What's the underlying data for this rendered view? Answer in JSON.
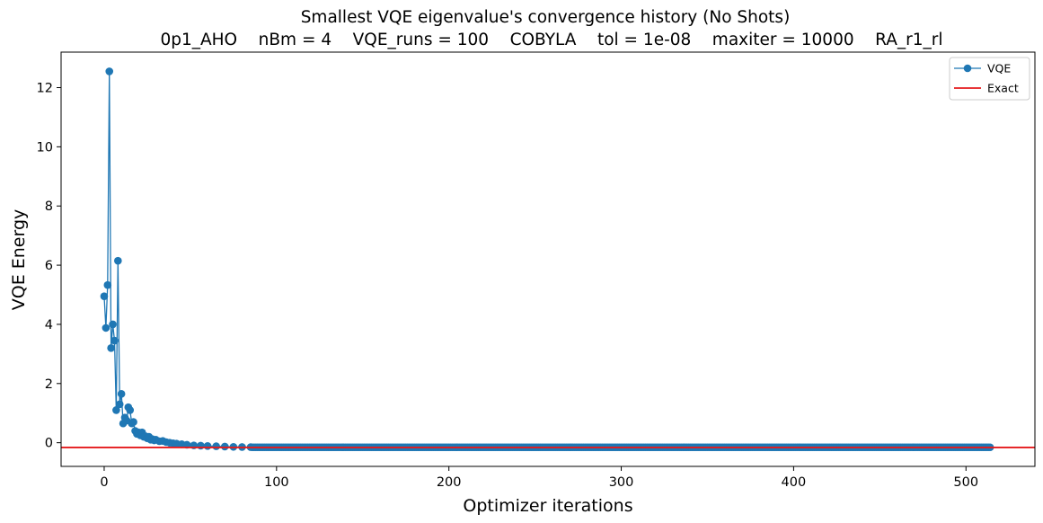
{
  "chart_data": {
    "type": "line",
    "title": "Smallest VQE eigenvalue's convergence history (No Shots)",
    "subtitle": "0p1_AHO    nBm = 4    VQE_runs = 100    COBYLA    tol = 1e-08    maxiter = 10000    RA_r1_rl",
    "xlabel": "Optimizer iterations",
    "ylabel": "VQE Energy",
    "xlim": [
      -25,
      540
    ],
    "ylim": [
      -0.8,
      13.2
    ],
    "x_ticks": [
      0,
      100,
      200,
      300,
      400,
      500
    ],
    "y_ticks": [
      0,
      2,
      4,
      6,
      8,
      10,
      12
    ],
    "grid": false,
    "legend_position": "top-right",
    "colors": {
      "vqe": "#1f77b4",
      "exact": "#e41a1c"
    },
    "series": [
      {
        "name": "VQE",
        "style": "line-marker",
        "head": [
          [
            0,
            4.95
          ],
          [
            1,
            3.88
          ],
          [
            2,
            5.33
          ],
          [
            3,
            12.55
          ],
          [
            4,
            3.2
          ],
          [
            5,
            4.0
          ],
          [
            6,
            3.45
          ],
          [
            7,
            1.1
          ],
          [
            8,
            6.15
          ],
          [
            9,
            1.3
          ],
          [
            10,
            1.65
          ],
          [
            11,
            0.65
          ],
          [
            12,
            0.85
          ],
          [
            13,
            0.75
          ],
          [
            14,
            1.2
          ],
          [
            15,
            1.1
          ],
          [
            16,
            0.65
          ],
          [
            17,
            0.7
          ],
          [
            18,
            0.4
          ],
          [
            19,
            0.3
          ],
          [
            20,
            0.35
          ],
          [
            21,
            0.25
          ],
          [
            22,
            0.35
          ],
          [
            23,
            0.2
          ],
          [
            24,
            0.22
          ],
          [
            25,
            0.15
          ],
          [
            26,
            0.2
          ],
          [
            27,
            0.1
          ],
          [
            28,
            0.12
          ],
          [
            29,
            0.08
          ],
          [
            30,
            0.1
          ],
          [
            32,
            0.05
          ],
          [
            34,
            0.06
          ],
          [
            36,
            0.02
          ],
          [
            38,
            0.0
          ],
          [
            40,
            -0.02
          ],
          [
            42,
            -0.03
          ],
          [
            45,
            -0.05
          ],
          [
            48,
            -0.07
          ],
          [
            52,
            -0.09
          ],
          [
            56,
            -0.1
          ],
          [
            60,
            -0.11
          ],
          [
            65,
            -0.12
          ],
          [
            70,
            -0.13
          ],
          [
            75,
            -0.14
          ],
          [
            80,
            -0.145
          ],
          [
            85,
            -0.15
          ]
        ],
        "tail": {
          "x_start": 86,
          "x_end": 514,
          "y": -0.155
        }
      },
      {
        "name": "Exact",
        "style": "hline",
        "y": -0.16
      }
    ]
  }
}
